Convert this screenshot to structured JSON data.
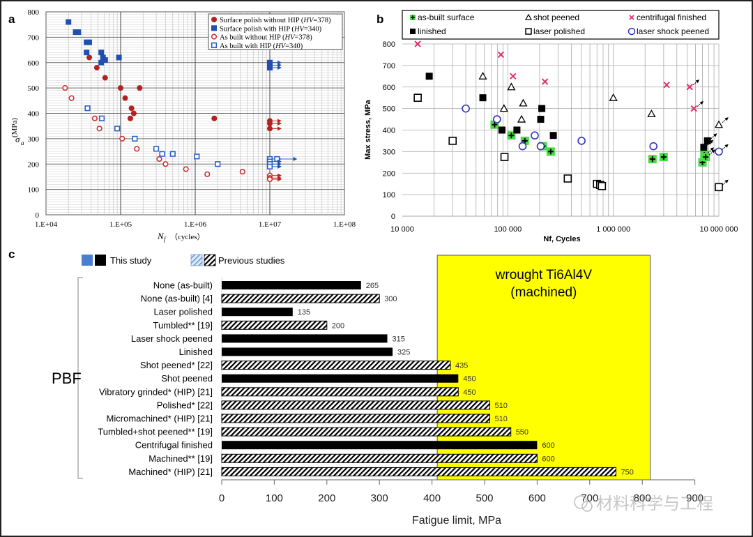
{
  "panels": {
    "a": {
      "label": "a"
    },
    "b": {
      "label": "b"
    },
    "c": {
      "label": "c"
    }
  },
  "watermark": "材料科学与工程",
  "chart_data": [
    {
      "id": "a",
      "type": "scatter",
      "xscale": "log",
      "xlabel": "Nf (cycles)",
      "xlabel_main": "N",
      "xlabel_sub": "f",
      "xlabel_unit": "（cycles）",
      "ylabel": "σa (MPa)",
      "ylabel_main": "σ",
      "ylabel_sub": "a",
      "ylabel_unit": "(MPa)",
      "xlim": [
        10000,
        100000000
      ],
      "ylim": [
        0,
        800
      ],
      "xticks": [
        "1.E+04",
        "1.E+05",
        "1.E+06",
        "1.E+07",
        "1.E+08"
      ],
      "yticks": [
        "0",
        "100",
        "200",
        "300",
        "400",
        "500",
        "600",
        "700",
        "800"
      ],
      "grid": true,
      "legend_position": "top-right",
      "series": [
        {
          "name": "Surface polish without HIP (HV=378)",
          "name_main": "Surface polish without HIP (",
          "name_italic": "HV",
          "name_tail": "=378)",
          "marker": "filled-circle",
          "color": "#b22222",
          "points": [
            [
              38000,
              620
            ],
            [
              48000,
              580
            ],
            [
              62000,
              540
            ],
            [
              100000,
              500
            ],
            [
              180000,
              500
            ],
            [
              115000,
              460
            ],
            [
              140000,
              420
            ],
            [
              150000,
              400
            ],
            [
              135000,
              380
            ],
            [
              1800000,
              380
            ]
          ],
          "runouts": [
            [
              10000000,
              370
            ],
            [
              10000000,
              360
            ],
            [
              10000000,
              340
            ]
          ]
        },
        {
          "name": "Surface polish with HIP (HV=340)",
          "name_main": "Surface polish with HIP (",
          "name_italic": "HV",
          "name_tail": "=340)",
          "marker": "filled-square",
          "color": "#1f4fb0",
          "points": [
            [
              20000,
              760
            ],
            [
              25000,
              720
            ],
            [
              27000,
              720
            ],
            [
              35000,
              680
            ],
            [
              38000,
              680
            ],
            [
              35000,
              640
            ],
            [
              55000,
              640
            ],
            [
              58000,
              620
            ],
            [
              62000,
              610
            ],
            [
              55000,
              600
            ],
            [
              95000,
              620
            ]
          ],
          "runouts": [
            [
              10000000,
              600
            ],
            [
              10000000,
              590
            ],
            [
              10000000,
              580
            ]
          ]
        },
        {
          "name": "As built without HIP (HV=378)",
          "name_main": "As built without HIP (",
          "name_italic": "HV",
          "name_tail": "=378)",
          "marker": "open-circle",
          "color": "#d03030",
          "points": [
            [
              18000,
              500
            ],
            [
              22000,
              460
            ],
            [
              45000,
              380
            ],
            [
              52000,
              340
            ],
            [
              105000,
              300
            ],
            [
              165000,
              260
            ],
            [
              330000,
              220
            ],
            [
              400000,
              200
            ],
            [
              750000,
              180
            ],
            [
              1450000,
              160
            ],
            [
              4300000,
              170
            ]
          ],
          "runouts": [
            [
              10000000,
              155
            ],
            [
              10000000,
              145
            ],
            [
              10000000,
              140
            ]
          ]
        },
        {
          "name": "As built with HIP (HV=340)",
          "name_main": "As built with HIP (",
          "name_italic": "HV",
          "name_tail": "=340)",
          "marker": "open-square",
          "color": "#2a60c8",
          "points": [
            [
              36000,
              420
            ],
            [
              56000,
              380
            ],
            [
              90000,
              340
            ],
            [
              155000,
              300
            ],
            [
              300000,
              260
            ],
            [
              360000,
              240
            ],
            [
              500000,
              240
            ],
            [
              1050000,
              230
            ],
            [
              2000000,
              200
            ]
          ],
          "runouts": [
            [
              10000000,
              220
            ],
            [
              12500000,
              220
            ],
            [
              10000000,
              210
            ],
            [
              10000000,
              200
            ],
            [
              10000000,
              190
            ]
          ]
        }
      ]
    },
    {
      "id": "b",
      "type": "scatter",
      "xscale": "log",
      "xlabel": "Nf, Cycles",
      "ylabel": "Max stress, MPa",
      "xlim": [
        10000,
        10000000
      ],
      "ylim": [
        0,
        800
      ],
      "xticks": [
        "10 000",
        "100 000",
        "1 000 000",
        "10 000 000"
      ],
      "yticks": [
        "0",
        "100",
        "200",
        "300",
        "400",
        "500",
        "600",
        "700",
        "800"
      ],
      "grid": true,
      "legend_position": "top",
      "series": [
        {
          "name": "as-built surface",
          "marker": "green-plus",
          "color": "#33cc33",
          "points": [
            [
              75000,
              425
            ],
            [
              108000,
              375
            ],
            [
              145000,
              350
            ],
            [
              215000,
              325
            ],
            [
              255000,
              300
            ],
            [
              2350000,
              265
            ],
            [
              3000000,
              275
            ],
            [
              7000000,
              250
            ],
            [
              7300000,
              285
            ],
            [
              7500000,
              275
            ]
          ],
          "runouts": [
            [
              7300000,
              285
            ],
            [
              7500000,
              275
            ]
          ]
        },
        {
          "name": "shot peened",
          "marker": "open-triangle",
          "color": "#000000",
          "points": [
            [
              58000,
              650
            ],
            [
              108000,
              600
            ],
            [
              92000,
              500
            ],
            [
              140000,
              525
            ],
            [
              135000,
              450
            ],
            [
              1000000,
              550
            ],
            [
              2300000,
              475
            ],
            [
              10000000,
              425
            ]
          ],
          "runouts": [
            [
              10000000,
              425
            ]
          ]
        },
        {
          "name": "centrifugal finished",
          "marker": "x",
          "color": "#e0306a",
          "points": [
            [
              14000,
              800
            ],
            [
              86000,
              750
            ],
            [
              112000,
              650
            ],
            [
              225000,
              625
            ],
            [
              3200000,
              610
            ],
            [
              5300000,
              600
            ],
            [
              5800000,
              500
            ]
          ],
          "runouts": [
            [
              5300000,
              600
            ],
            [
              5800000,
              500
            ]
          ]
        },
        {
          "name": "linished",
          "marker": "filled-square",
          "color": "#000000",
          "points": [
            [
              18000,
              650
            ],
            [
              58000,
              550
            ],
            [
              88000,
              400
            ],
            [
              122000,
              400
            ],
            [
              210000,
              500
            ],
            [
              205000,
              450
            ],
            [
              270000,
              375
            ],
            [
              7200000,
              320
            ],
            [
              7800000,
              350
            ]
          ],
          "runouts": [
            [
              7200000,
              320
            ],
            [
              7800000,
              350
            ]
          ]
        },
        {
          "name": "laser polished",
          "marker": "open-square",
          "color": "#000000",
          "points": [
            [
              14000,
              550
            ],
            [
              30000,
              350
            ],
            [
              93000,
              275
            ],
            [
              370000,
              175
            ],
            [
              700000,
              150
            ],
            [
              750000,
              145
            ],
            [
              780000,
              140
            ],
            [
              10000000,
              135
            ]
          ],
          "runouts": [
            [
              10000000,
              135
            ]
          ]
        },
        {
          "name": "laser shock peened",
          "marker": "open-circle",
          "color": "#3030c0",
          "points": [
            [
              40000,
              500
            ],
            [
              79000,
              450
            ],
            [
              138000,
              325
            ],
            [
              180000,
              375
            ],
            [
              205000,
              325
            ],
            [
              500000,
              350
            ],
            [
              2400000,
              325
            ],
            [
              10000000,
              300
            ]
          ],
          "runouts": [
            [
              10000000,
              300
            ]
          ]
        }
      ]
    },
    {
      "id": "c",
      "type": "bar",
      "orientation": "horizontal",
      "xlabel": "Fatigue limit, MPa",
      "xlim": [
        0,
        900
      ],
      "xticks": [
        "0",
        "100",
        "200",
        "300",
        "400",
        "500",
        "600",
        "700",
        "800",
        "900"
      ],
      "group_label": "PBF",
      "legend": [
        {
          "label": "This study",
          "swatches": [
            "solid-blue",
            "solid-black"
          ]
        },
        {
          "label": "Previous studies",
          "swatches": [
            "hatched-blue",
            "hatched-black"
          ]
        }
      ],
      "reference_region": {
        "label_line1": "wrought Ti6Al4V",
        "label_line2": "(machined)",
        "from": 410,
        "to": 815,
        "color": "#ffff00"
      },
      "categories": [
        "None (as-built)",
        "None (as-built) [4]",
        "Laser polished",
        "Tumbled** [19]",
        "Laser shock peened",
        "Linished",
        "Shot peened* [22]",
        "Shot peened",
        "Vibratory grinded* (HIP) [21]",
        "Polished* [22]",
        "Micromachined* (HIP) [21]",
        "Tumbled+shot peened** [19]",
        "Centrifugal finished",
        "Machined** [19]",
        "Machined* (HIP) [21]"
      ],
      "values": [
        265,
        300,
        135,
        200,
        315,
        325,
        435,
        450,
        450,
        510,
        510,
        550,
        600,
        600,
        750
      ],
      "styles": [
        "solid",
        "hatched",
        "solid",
        "hatched",
        "solid",
        "solid",
        "hatched",
        "solid",
        "hatched",
        "hatched",
        "hatched",
        "hatched",
        "solid",
        "hatched",
        "hatched"
      ]
    }
  ]
}
